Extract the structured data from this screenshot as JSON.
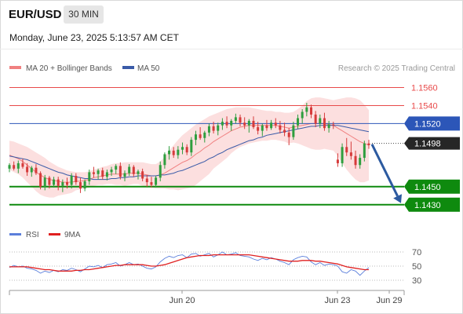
{
  "header": {
    "symbol": "EUR/USD",
    "timeframe": "30 MIN",
    "datetime": "Monday, June 23, 2025 5:13:57 AM CET"
  },
  "legend": {
    "ma20_label": "MA 20 + Bollinger Bands",
    "ma50_label": "MA 50",
    "ma20_color": "#f08080",
    "ma50_color": "#3a5ba8",
    "source": "Research © 2025 Trading Central"
  },
  "rsi_legend": {
    "rsi_label": "RSI",
    "ma_label": "9MA",
    "rsi_color": "#5b7fdb",
    "ma_color": "#e02020"
  },
  "chart_data": [
    {
      "type": "candlestick",
      "title": "EUR/USD 30 MIN",
      "ylim": [
        1.1415,
        1.157
      ],
      "x_labels": [
        "Jun 20",
        "Jun 23",
        "Jun 29"
      ],
      "current_price": "1.1498",
      "horizontal_levels": [
        {
          "value": 1.156,
          "label": "1.1560",
          "color": "#e84a4a",
          "style": "resistance"
        },
        {
          "value": 1.154,
          "label": "1.1540",
          "color": "#e84a4a",
          "style": "resistance"
        },
        {
          "value": 1.152,
          "label": "1.1520",
          "color": "#2c56b8",
          "style": "pivot"
        },
        {
          "value": 1.145,
          "label": "1.1450",
          "color": "#0e8a0e",
          "style": "support"
        },
        {
          "value": 1.143,
          "label": "1.1430",
          "color": "#0e8a0e",
          "style": "support"
        }
      ],
      "forecast_arrow": {
        "from": 1.1497,
        "to": 1.143
      },
      "candles": [
        [
          1.147,
          1.1476,
          1.1466,
          1.1474
        ],
        [
          1.1474,
          1.1478,
          1.1468,
          1.147
        ],
        [
          1.147,
          1.1479,
          1.1465,
          1.1476
        ],
        [
          1.1476,
          1.1481,
          1.147,
          1.1472
        ],
        [
          1.1472,
          1.1476,
          1.1462,
          1.1466
        ],
        [
          1.1466,
          1.1473,
          1.1461,
          1.1471
        ],
        [
          1.1471,
          1.1475,
          1.1463,
          1.1465
        ],
        [
          1.1465,
          1.1467,
          1.1447,
          1.145
        ],
        [
          1.145,
          1.1463,
          1.1446,
          1.146
        ],
        [
          1.146,
          1.1462,
          1.1448,
          1.1452
        ],
        [
          1.1452,
          1.1461,
          1.1449,
          1.1458
        ],
        [
          1.1458,
          1.1461,
          1.1446,
          1.1451
        ],
        [
          1.1451,
          1.1458,
          1.1444,
          1.1455
        ],
        [
          1.1455,
          1.146,
          1.1448,
          1.1452
        ],
        [
          1.1452,
          1.1465,
          1.1448,
          1.1462
        ],
        [
          1.1462,
          1.1465,
          1.1452,
          1.1455
        ],
        [
          1.1455,
          1.146,
          1.1443,
          1.1448
        ],
        [
          1.1448,
          1.1458,
          1.1445,
          1.1456
        ],
        [
          1.1456,
          1.1469,
          1.1452,
          1.1466
        ],
        [
          1.1466,
          1.1472,
          1.146,
          1.1464
        ],
        [
          1.1464,
          1.147,
          1.1458,
          1.1468
        ],
        [
          1.1468,
          1.1471,
          1.1458,
          1.1461
        ],
        [
          1.1461,
          1.1469,
          1.1457,
          1.1466
        ],
        [
          1.1466,
          1.1472,
          1.1462,
          1.1469
        ],
        [
          1.1469,
          1.1475,
          1.1464,
          1.1473
        ],
        [
          1.1473,
          1.1477,
          1.1458,
          1.1461
        ],
        [
          1.1461,
          1.1468,
          1.1456,
          1.1465
        ],
        [
          1.1465,
          1.1475,
          1.1462,
          1.1472
        ],
        [
          1.1472,
          1.1474,
          1.1461,
          1.1464
        ],
        [
          1.1464,
          1.1469,
          1.1458,
          1.1467
        ],
        [
          1.1467,
          1.147,
          1.1456,
          1.1459
        ],
        [
          1.1459,
          1.1463,
          1.145,
          1.1455
        ],
        [
          1.1455,
          1.1461,
          1.1449,
          1.1452
        ],
        [
          1.1452,
          1.1462,
          1.1449,
          1.146
        ],
        [
          1.146,
          1.1478,
          1.1456,
          1.1474
        ],
        [
          1.1474,
          1.1488,
          1.147,
          1.1486
        ],
        [
          1.1486,
          1.1495,
          1.148,
          1.149
        ],
        [
          1.149,
          1.1494,
          1.1482,
          1.1485
        ],
        [
          1.1485,
          1.1495,
          1.1481,
          1.1491
        ],
        [
          1.1491,
          1.1499,
          1.1486,
          1.1494
        ],
        [
          1.1494,
          1.1497,
          1.1485,
          1.1488
        ],
        [
          1.1488,
          1.1505,
          1.1484,
          1.1502
        ],
        [
          1.1502,
          1.1512,
          1.1496,
          1.1508
        ],
        [
          1.1508,
          1.1516,
          1.1502,
          1.1504
        ],
        [
          1.1504,
          1.1512,
          1.1499,
          1.151
        ],
        [
          1.151,
          1.152,
          1.1506,
          1.1517
        ],
        [
          1.1517,
          1.1522,
          1.1509,
          1.1512
        ],
        [
          1.1512,
          1.1521,
          1.1507,
          1.1518
        ],
        [
          1.1518,
          1.1526,
          1.1513,
          1.1522
        ],
        [
          1.1522,
          1.1528,
          1.1515,
          1.1518
        ],
        [
          1.1518,
          1.1525,
          1.1512,
          1.1523
        ],
        [
          1.1523,
          1.1531,
          1.152,
          1.1527
        ],
        [
          1.1527,
          1.153,
          1.1517,
          1.1521
        ],
        [
          1.1521,
          1.1527,
          1.1514,
          1.1518
        ],
        [
          1.1518,
          1.1525,
          1.151,
          1.1523
        ],
        [
          1.1523,
          1.1528,
          1.1514,
          1.1516
        ],
        [
          1.1516,
          1.1522,
          1.1508,
          1.1512
        ],
        [
          1.1512,
          1.152,
          1.1506,
          1.1518
        ],
        [
          1.1518,
          1.1524,
          1.1512,
          1.1515
        ],
        [
          1.1515,
          1.1524,
          1.1513,
          1.1521
        ],
        [
          1.1521,
          1.1526,
          1.1515,
          1.1518
        ],
        [
          1.1518,
          1.1523,
          1.1509,
          1.1513
        ],
        [
          1.1513,
          1.1521,
          1.1506,
          1.151
        ],
        [
          1.151,
          1.1515,
          1.1496,
          1.1505
        ],
        [
          1.1505,
          1.1522,
          1.1502,
          1.1518
        ],
        [
          1.1518,
          1.153,
          1.1514,
          1.1526
        ],
        [
          1.1526,
          1.1536,
          1.152,
          1.1533
        ],
        [
          1.1533,
          1.1543,
          1.1528,
          1.1538
        ],
        [
          1.1538,
          1.1541,
          1.1526,
          1.153
        ],
        [
          1.153,
          1.1534,
          1.1516,
          1.152
        ],
        [
          1.152,
          1.153,
          1.1515,
          1.1526
        ],
        [
          1.1526,
          1.1532,
          1.1512,
          1.1515
        ],
        [
          1.1515,
          1.1523,
          1.151,
          1.1519
        ],
        [
          1.1519,
          1.1522,
          1.1514,
          1.1518
        ],
        [
          1.148,
          1.1487,
          1.1472,
          1.1476
        ],
        [
          1.1476,
          1.1498,
          1.1472,
          1.1494
        ],
        [
          1.1494,
          1.1504,
          1.1484,
          1.1488
        ],
        [
          1.1488,
          1.15,
          1.148,
          1.1484
        ],
        [
          1.1484,
          1.149,
          1.147,
          1.1474
        ],
        [
          1.1474,
          1.1486,
          1.147,
          1.1482
        ],
        [
          1.1482,
          1.1501,
          1.1478,
          1.1498
        ],
        [
          1.1498,
          1.1502,
          1.1492,
          1.1496
        ]
      ],
      "ma20": [
        1.1485,
        1.1483,
        1.1481,
        1.1478,
        1.1474,
        1.147,
        1.1466,
        1.1463,
        1.146,
        1.1458,
        1.1457,
        1.1456,
        1.1455,
        1.1455,
        1.1455,
        1.1456,
        1.1456,
        1.1457,
        1.1458,
        1.146,
        1.1461,
        1.1462,
        1.1463,
        1.1464,
        1.1464,
        1.1464,
        1.1464,
        1.1465,
        1.1465,
        1.1465,
        1.1464,
        1.1463,
        1.1462,
        1.1462,
        1.1463,
        1.1465,
        1.1468,
        1.1471,
        1.1474,
        1.1477,
        1.1479,
        1.1482,
        1.1486,
        1.1489,
        1.1493,
        1.1496,
        1.15,
        1.1503,
        1.1506,
        1.1509,
        1.1512,
        1.1514,
        1.1516,
        1.1517,
        1.1518,
        1.1518,
        1.1518,
        1.1518,
        1.1518,
        1.1518,
        1.1518,
        1.1517,
        1.1516,
        1.1515,
        1.1516,
        1.1517,
        1.1518,
        1.1519,
        1.152,
        1.152,
        1.152,
        1.152,
        1.1519,
        1.1518,
        1.1515,
        1.1512,
        1.1509,
        1.1506,
        1.1503,
        1.15,
        1.1498,
        1.1496
      ],
      "ma50": [
        1.1484,
        1.1483,
        1.1482,
        1.1481,
        1.148,
        1.1478,
        1.1476,
        1.1474,
        1.1472,
        1.147,
        1.1468,
        1.1466,
        1.1465,
        1.1463,
        1.1462,
        1.1461,
        1.146,
        1.1459,
        1.1459,
        1.1458,
        1.1458,
        1.1458,
        1.1458,
        1.1459,
        1.1459,
        1.146,
        1.146,
        1.1461,
        1.1461,
        1.1462,
        1.1462,
        1.1462,
        1.1462,
        1.1462,
        1.1463,
        1.1463,
        1.1464,
        1.1465,
        1.1467,
        1.1468,
        1.147,
        1.1472,
        1.1474,
        1.1476,
        1.1478,
        1.1481,
        1.1483,
        1.1486,
        1.1488,
        1.1491,
        1.1493,
        1.1495,
        1.1497,
        1.1499,
        1.1501,
        1.1502,
        1.1504,
        1.1505,
        1.1507,
        1.1508,
        1.1509,
        1.151,
        1.1511,
        1.1512,
        1.1513,
        1.1514,
        1.1515,
        1.1516,
        1.1517,
        1.1517,
        1.1518,
        1.1518,
        1.1518,
        1.1518,
        1.1518,
        1.1517,
        1.1516,
        1.1515,
        1.1514,
        1.1513,
        1.1512,
        1.1511
      ],
      "bb_upper": [
        1.1501,
        1.15,
        1.1498,
        1.1496,
        1.1494,
        1.1491,
        1.1488,
        1.1485,
        1.1482,
        1.1478,
        1.1475,
        1.1472,
        1.147,
        1.1468,
        1.1467,
        1.1466,
        1.1466,
        1.1466,
        1.1467,
        1.1469,
        1.147,
        1.1472,
        1.1473,
        1.1475,
        1.1476,
        1.1476,
        1.1477,
        1.1477,
        1.1477,
        1.1477,
        1.1477,
        1.1476,
        1.1475,
        1.1475,
        1.1478,
        1.1483,
        1.149,
        1.1496,
        1.1502,
        1.1507,
        1.1511,
        1.1515,
        1.1519,
        1.1522,
        1.1525,
        1.1528,
        1.153,
        1.1532,
        1.1534,
        1.1536,
        1.1537,
        1.1538,
        1.1538,
        1.1538,
        1.1538,
        1.1537,
        1.1536,
        1.1535,
        1.1534,
        1.1534,
        1.1533,
        1.1533,
        1.1532,
        1.1532,
        1.1533,
        1.1536,
        1.154,
        1.1545,
        1.1548,
        1.1549,
        1.1549,
        1.1548,
        1.1547,
        1.1546,
        1.1547,
        1.1548,
        1.1549,
        1.1549,
        1.1548,
        1.1546,
        1.1541,
        1.1535
      ],
      "bb_lower": [
        1.1469,
        1.1466,
        1.1464,
        1.146,
        1.1455,
        1.145,
        1.1445,
        1.1441,
        1.1439,
        1.1438,
        1.1438,
        1.144,
        1.1441,
        1.1442,
        1.1443,
        1.1446,
        1.1447,
        1.1448,
        1.1449,
        1.1451,
        1.1452,
        1.1452,
        1.1453,
        1.1453,
        1.1452,
        1.1452,
        1.1451,
        1.1452,
        1.1453,
        1.1453,
        1.1451,
        1.145,
        1.1449,
        1.1448,
        1.1448,
        1.1448,
        1.1447,
        1.1447,
        1.1446,
        1.1447,
        1.1448,
        1.1449,
        1.1452,
        1.1456,
        1.146,
        1.1464,
        1.147,
        1.1474,
        1.1478,
        1.1482,
        1.1487,
        1.1491,
        1.1494,
        1.1496,
        1.1498,
        1.1499,
        1.15,
        1.1501,
        1.1501,
        1.1502,
        1.1502,
        1.1501,
        1.15,
        1.1498,
        1.1499,
        1.1498,
        1.1496,
        1.1494,
        1.1492,
        1.1491,
        1.1491,
        1.1492,
        1.1491,
        1.149,
        1.1484,
        1.1476,
        1.1469,
        1.1463,
        1.1458,
        1.1455,
        1.1455,
        1.1457
      ]
    },
    {
      "type": "line",
      "title": "RSI",
      "ylim": [
        20,
        80
      ],
      "yticks": [
        70,
        50,
        30
      ],
      "series": [
        {
          "name": "RSI",
          "values": [
            48,
            51,
            49,
            50,
            47,
            46,
            44,
            40,
            43,
            41,
            44,
            42,
            45,
            44,
            47,
            45,
            42,
            46,
            50,
            49,
            51,
            48,
            52,
            53,
            55,
            50,
            52,
            55,
            52,
            53,
            50,
            47,
            46,
            49,
            56,
            61,
            64,
            62,
            65,
            66,
            62,
            67,
            68,
            64,
            66,
            68,
            63,
            66,
            70,
            66,
            67,
            69,
            65,
            64,
            63,
            60,
            58,
            61,
            59,
            62,
            60,
            57,
            55,
            52,
            59,
            62,
            64,
            63,
            56,
            52,
            55,
            51,
            53,
            52,
            50,
            42,
            40,
            45,
            43,
            37,
            43,
            48
          ]
        },
        {
          "name": "9MA",
          "values": [
            49,
            49,
            49,
            49,
            49,
            48,
            47,
            46,
            45,
            45,
            44,
            43,
            43,
            43,
            43,
            44,
            44,
            45,
            45,
            46,
            47,
            48,
            49,
            50,
            51,
            51,
            52,
            52,
            52,
            52,
            52,
            51,
            50,
            50,
            51,
            52,
            54,
            56,
            58,
            60,
            62,
            63,
            64,
            65,
            65,
            65,
            66,
            66,
            66,
            66,
            66,
            66,
            66,
            66,
            66,
            65,
            64,
            63,
            62,
            61,
            60,
            59,
            58,
            57,
            57,
            57,
            58,
            58,
            58,
            57,
            57,
            56,
            55,
            54,
            53,
            51,
            49,
            48,
            47,
            46,
            45,
            45
          ]
        }
      ]
    }
  ]
}
